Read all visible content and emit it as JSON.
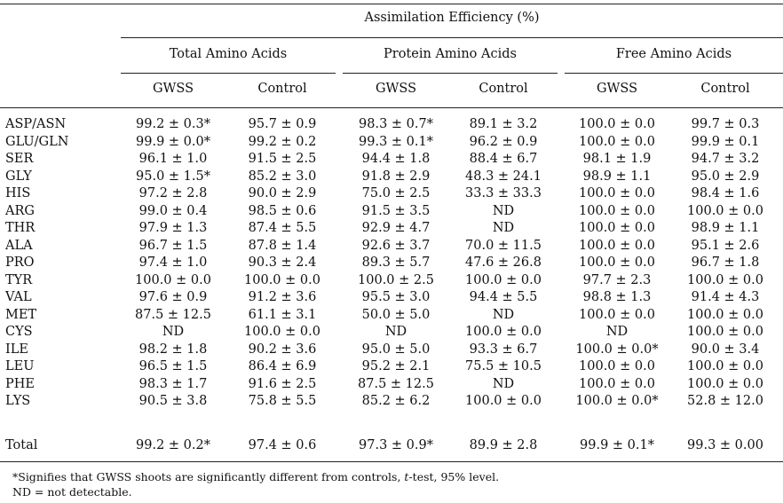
{
  "header": {
    "title": "Assimilation Efficiency (%)",
    "groups": [
      "Total Amino Acids",
      "Protein Amino Acids",
      "Free Amino Acids"
    ],
    "subcolumns": [
      "GWSS",
      "Control",
      "GWSS",
      "Control",
      "GWSS",
      "Control"
    ]
  },
  "rows": [
    {
      "label": "ASP/ASN",
      "cells": [
        "99.2 ± 0.3*",
        "95.7 ± 0.9",
        "98.3 ± 0.7*",
        "89.1 ± 3.2",
        "100.0 ± 0.0",
        "99.7 ± 0.3"
      ]
    },
    {
      "label": "GLU/GLN",
      "cells": [
        "99.9 ± 0.0*",
        "99.2 ± 0.2",
        "99.3 ± 0.1*",
        "96.2 ± 0.9",
        "100.0 ± 0.0",
        "99.9 ± 0.1"
      ]
    },
    {
      "label": "SER",
      "cells": [
        "96.1 ± 1.0",
        "91.5 ± 2.5",
        "94.4 ± 1.8",
        "88.4 ± 6.7",
        "98.1 ± 1.9",
        "94.7 ± 3.2"
      ]
    },
    {
      "label": "GLY",
      "cells": [
        "95.0 ± 1.5*",
        "85.2 ± 3.0",
        "91.8 ± 2.9",
        "48.3 ± 24.1",
        "98.9 ± 1.1",
        "95.0 ± 2.9"
      ]
    },
    {
      "label": "HIS",
      "cells": [
        "97.2 ± 2.8",
        "90.0 ± 2.9",
        "75.0 ± 2.5",
        "33.3 ± 33.3",
        "100.0 ± 0.0",
        "98.4 ± 1.6"
      ]
    },
    {
      "label": "ARG",
      "cells": [
        "99.0 ± 0.4",
        "98.5 ± 0.6",
        "91.5 ± 3.5",
        "ND",
        "100.0 ± 0.0",
        "100.0 ± 0.0"
      ]
    },
    {
      "label": "THR",
      "cells": [
        "97.9 ± 1.3",
        "87.4 ± 5.5",
        "92.9 ± 4.7",
        "ND",
        "100.0 ± 0.0",
        "98.9 ± 1.1"
      ]
    },
    {
      "label": "ALA",
      "cells": [
        "96.7 ± 1.5",
        "87.8 ± 1.4",
        "92.6 ± 3.7",
        "70.0 ± 11.5",
        "100.0 ± 0.0",
        "95.1 ± 2.6"
      ]
    },
    {
      "label": "PRO",
      "cells": [
        "97.4 ± 1.0",
        "90.3 ± 2.4",
        "89.3 ± 5.7",
        "47.6 ± 26.8",
        "100.0 ± 0.0",
        "96.7 ± 1.8"
      ]
    },
    {
      "label": "TYR",
      "cells": [
        "100.0 ± 0.0",
        "100.0 ± 0.0",
        "100.0 ± 2.5",
        "100.0 ± 0.0",
        "97.7 ± 2.3",
        "100.0 ± 0.0"
      ]
    },
    {
      "label": "VAL",
      "cells": [
        "97.6 ± 0.9",
        "91.2 ± 3.6",
        "95.5 ± 3.0",
        "94.4 ± 5.5",
        "98.8 ± 1.3",
        "91.4 ± 4.3"
      ]
    },
    {
      "label": "MET",
      "cells": [
        "87.5 ± 12.5",
        "61.1 ± 3.1",
        "50.0 ± 5.0",
        "ND",
        "100.0 ± 0.0",
        "100.0 ± 0.0"
      ]
    },
    {
      "label": "CYS",
      "cells": [
        "ND",
        "100.0 ± 0.0",
        "ND",
        "100.0 ± 0.0",
        "ND",
        "100.0 ± 0.0"
      ]
    },
    {
      "label": "ILE",
      "cells": [
        "98.2 ± 1.8",
        "90.2 ± 3.6",
        "95.0 ± 5.0",
        "93.3 ± 6.7",
        "100.0 ± 0.0*",
        "90.0 ± 3.4"
      ]
    },
    {
      "label": "LEU",
      "cells": [
        "96.5 ± 1.5",
        "86.4 ± 6.9",
        "95.2 ± 2.1",
        "75.5 ± 10.5",
        "100.0 ± 0.0",
        "100.0 ± 0.0"
      ]
    },
    {
      "label": "PHE",
      "cells": [
        "98.3 ± 1.7",
        "91.6 ± 2.5",
        "87.5 ± 12.5",
        "ND",
        "100.0 ± 0.0",
        "100.0 ± 0.0"
      ]
    },
    {
      "label": "LYS",
      "cells": [
        "90.5 ± 3.8",
        "75.8 ± 5.5",
        "85.2 ± 6.2",
        "100.0 ± 0.0",
        "100.0 ± 0.0*",
        "52.8 ± 12.0"
      ]
    }
  ],
  "total": {
    "label": "Total",
    "cells": [
      "99.2 ± 0.2*",
      "97.4 ± 0.6",
      "97.3 ± 0.9*",
      "89.9 ± 2.8",
      "99.9 ± 0.1*",
      "99.3 ± 0.00"
    ]
  },
  "footnotes": {
    "sig_prefix": "*Signifies that GWSS shoots are significantly different from controls, ",
    "sig_italic": "t",
    "sig_suffix": "-test, 95% level.",
    "nd": "ND = not detectable."
  }
}
